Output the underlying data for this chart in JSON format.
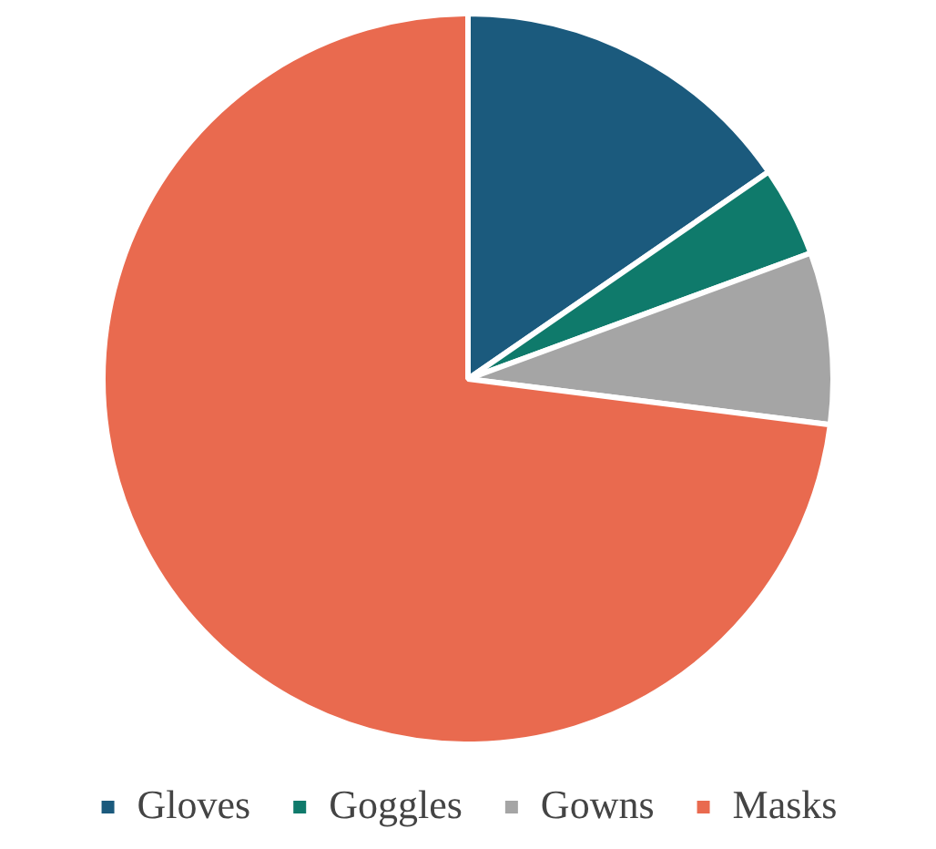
{
  "chart_data": {
    "type": "pie",
    "categories": [
      "Gloves",
      "Goggles",
      "Gowns",
      "Masks"
    ],
    "values": [
      15.4,
      4.0,
      7.6,
      73.0
    ],
    "colors": [
      "#1b5a7d",
      "#0f7a6b",
      "#a5a5a5",
      "#e96a4f"
    ],
    "legend": "bottom"
  }
}
